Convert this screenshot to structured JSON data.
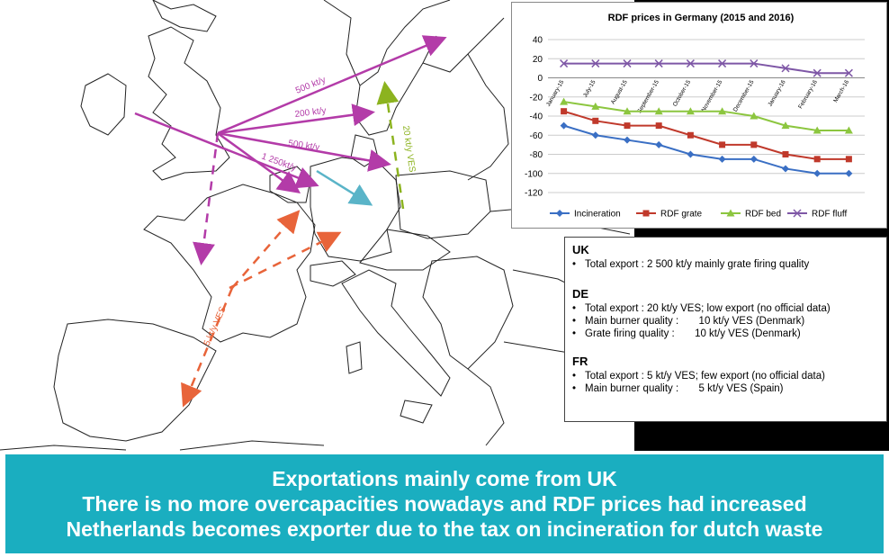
{
  "map": {
    "flows": [
      {
        "label": "500 kt/y",
        "color": "#b33ba8"
      },
      {
        "label": "200 kt/y",
        "color": "#b33ba8"
      },
      {
        "label": "500 kt/y",
        "color": "#b33ba8"
      },
      {
        "label": "1 250kt/y",
        "color": "#b33ba8"
      },
      {
        "label": "20 kt/y VES",
        "color": "#8cb31f"
      },
      {
        "label": "5 kt/y VES",
        "color": "#e8643a"
      }
    ],
    "uk_color": "#b33ba8",
    "nl_arrow_color": "#5ab4c8",
    "de_color": "#8cb31f",
    "fr_color": "#e8643a"
  },
  "chart_data": {
    "type": "line",
    "title": "RDF prices in Germany (2015 and 2016)",
    "categories": [
      "January-15",
      "July-15",
      "August-15",
      "September-15",
      "October-15",
      "November-15",
      "December-15",
      "January-16",
      "February-16",
      "March-16"
    ],
    "ylim": [
      -120,
      40
    ],
    "yticks": [
      40,
      20,
      0,
      -20,
      -40,
      -60,
      -80,
      -100,
      -120
    ],
    "grid": true,
    "legend_position": "bottom",
    "series": [
      {
        "name": "Incineration",
        "color": "#3a6fc4",
        "marker": "diamond",
        "values": [
          -50,
          -60,
          -65,
          -70,
          -80,
          -85,
          -85,
          -95,
          -100,
          -100
        ]
      },
      {
        "name": "RDF grate",
        "color": "#c0392b",
        "marker": "square",
        "values": [
          -35,
          -45,
          -50,
          -50,
          -60,
          -70,
          -70,
          -80,
          -85,
          -85
        ]
      },
      {
        "name": "RDF bed",
        "color": "#8cc63f",
        "marker": "triangle",
        "values": [
          -25,
          -30,
          -35,
          -35,
          -35,
          -35,
          -40,
          -50,
          -55,
          -55
        ]
      },
      {
        "name": "RDF fluff",
        "color": "#7e57a6",
        "marker": "x",
        "values": [
          15,
          15,
          15,
          15,
          15,
          15,
          15,
          10,
          5,
          5
        ]
      }
    ]
  },
  "info": {
    "uk": {
      "title": "UK",
      "items": [
        "Total export : 2 500 kt/y mainly grate firing quality"
      ]
    },
    "de": {
      "title": "DE",
      "items": [
        "Total export : 20 kt/y VES; low export (no official data)",
        "Main burner quality :       10 kt/y VES (Denmark)",
        "Grate firing quality :       10 kt/y VES (Denmark)"
      ]
    },
    "fr": {
      "title": "FR",
      "items": [
        "Total export : 5 kt/y VES; few export (no official data)",
        "Main burner quality :       5 kt/y VES (Spain)"
      ]
    }
  },
  "banner": {
    "lines": [
      "Exportations mainly come from UK",
      "There is no more overcapacities nowadays and RDF prices had increased",
      "Netherlands becomes exporter due to the tax on incineration for dutch waste"
    ]
  }
}
